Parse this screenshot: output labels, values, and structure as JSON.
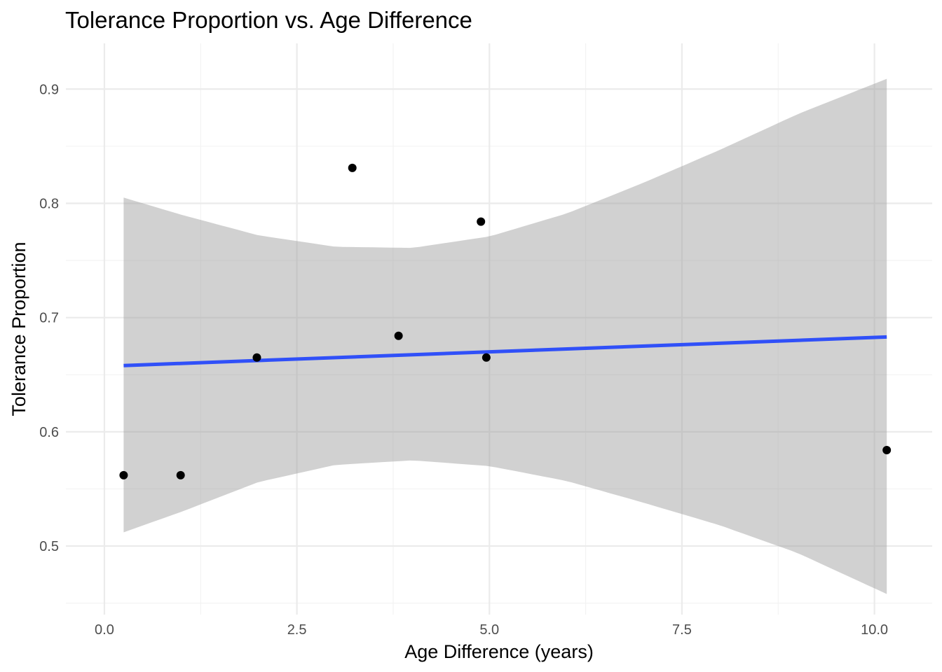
{
  "chart_data": {
    "type": "scatter",
    "title": "Tolerance Proportion vs. Age Difference",
    "xlabel": "Age Difference (years)",
    "ylabel": "Tolerance Proportion",
    "xlim": [
      -0.5,
      10.75
    ],
    "ylim": [
      0.44,
      0.94
    ],
    "x_ticks": [
      0.0,
      2.5,
      5.0,
      7.5,
      10.0
    ],
    "x_tick_labels": [
      "0.0",
      "2.5",
      "5.0",
      "7.5",
      "10.0"
    ],
    "y_ticks": [
      0.5,
      0.6,
      0.7,
      0.8,
      0.9
    ],
    "y_tick_labels": [
      "0.5",
      "0.6",
      "0.7",
      "0.8",
      "0.9"
    ],
    "grid": true,
    "points": {
      "x": [
        0.25,
        0.99,
        1.98,
        3.22,
        3.82,
        4.89,
        4.96,
        10.16
      ],
      "y": [
        0.562,
        0.562,
        0.665,
        0.831,
        0.684,
        0.784,
        0.665,
        0.584
      ]
    },
    "fit_line": {
      "x": [
        0.25,
        10.16
      ],
      "y": [
        0.658,
        0.683
      ]
    },
    "confidence_band": {
      "x": [
        0.25,
        1.0,
        2.0,
        3.0,
        4.0,
        5.0,
        6.0,
        7.0,
        8.0,
        9.0,
        10.16
      ],
      "upper": [
        0.805,
        0.79,
        0.772,
        0.762,
        0.761,
        0.771,
        0.791,
        0.818,
        0.847,
        0.878,
        0.909
      ],
      "lower": [
        0.512,
        0.53,
        0.556,
        0.571,
        0.575,
        0.57,
        0.557,
        0.538,
        0.518,
        0.494,
        0.458
      ]
    },
    "colors": {
      "points": "#000000",
      "fit_line": "#3050f8",
      "band": "#999999",
      "grid": "#ebebeb"
    }
  }
}
